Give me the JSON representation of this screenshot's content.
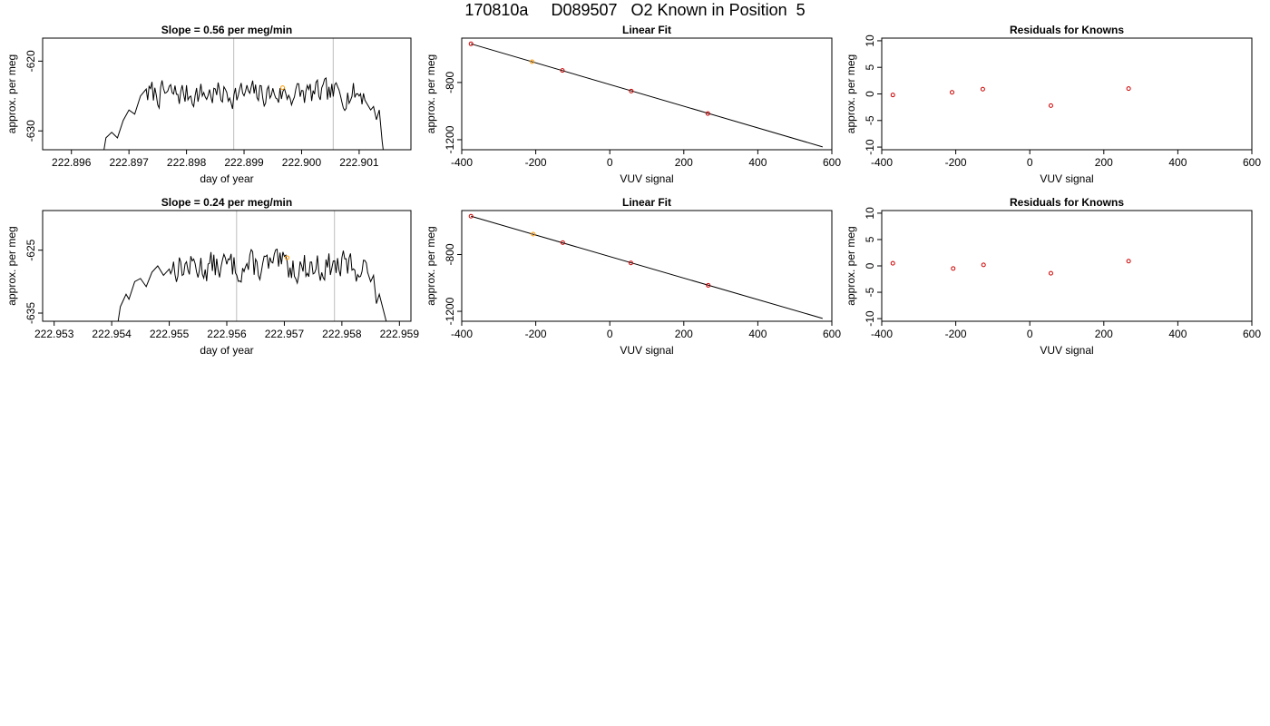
{
  "page": {
    "title": "170810a     D089507   O2 Known in Position  5"
  },
  "chart_data": [
    {
      "type": "line",
      "panel": "trace",
      "title": "Slope =  0.56  per meg/min",
      "xlabel": "day of year",
      "ylabel": "approx. per meg",
      "xlim": [
        222.8955,
        222.9019
      ],
      "ylim": [
        -632.7,
        -616.7
      ],
      "xticks": [
        "222.896",
        "222.897",
        "222.898",
        "222.899",
        "222.900",
        "222.901"
      ],
      "yticks": [
        "-620",
        "-630"
      ],
      "vlines": [
        222.89882,
        222.90055
      ],
      "trace_range": [
        222.89655,
        222.90143
      ],
      "trace_baseline": -624.7,
      "trace_amplitude": 1.7,
      "trace_seed": 7,
      "edge": {
        "start": [
          [
            222.89655,
            -633.5
          ],
          [
            222.8966,
            -631.0
          ],
          [
            222.8967,
            -630.2
          ],
          [
            222.8968,
            -631.0
          ],
          [
            222.8969,
            -628.5
          ],
          [
            222.897,
            -627.0
          ],
          [
            222.8971,
            -627.6
          ],
          [
            222.8972,
            -625.0
          ],
          [
            222.8973,
            -624.0
          ]
        ],
        "end": [
          [
            222.9011,
            -625.6
          ],
          [
            222.9012,
            -627.0
          ],
          [
            222.90125,
            -626.5
          ],
          [
            222.9013,
            -628.4
          ],
          [
            222.90135,
            -627.0
          ],
          [
            222.9014,
            -631.5
          ],
          [
            222.90143,
            -633.5
          ]
        ]
      },
      "points": [
        {
          "x": 222.89967,
          "y": -623.8,
          "color": "#ff9900"
        }
      ]
    },
    {
      "type": "scatter",
      "panel": "fit",
      "title": "Linear Fit",
      "xlabel": "VUV signal",
      "ylabel": "approx. per meg",
      "xlim": [
        -400,
        600
      ],
      "ylim": [
        -1270,
        -490
      ],
      "xticks": [
        -400,
        -200,
        0,
        200,
        400,
        600
      ],
      "yticks": [
        -800,
        -1200
      ],
      "fit_line": [
        [
          -375,
          -530
        ],
        [
          575,
          -1250
        ]
      ],
      "points": [
        {
          "x": -375,
          "y": -530,
          "color": "#cc0000"
        },
        {
          "x": -210,
          "y": -655,
          "color": "#ff9900"
        },
        {
          "x": -128,
          "y": -716,
          "color": "#cc0000"
        },
        {
          "x": 58,
          "y": -860,
          "color": "#cc0000"
        },
        {
          "x": 265,
          "y": -1017,
          "color": "#cc0000"
        }
      ]
    },
    {
      "type": "scatter",
      "panel": "residuals",
      "title": "Residuals for Knowns",
      "xlabel": "VUV signal",
      "ylabel": "approx. per meg",
      "xlim": [
        -400,
        600
      ],
      "ylim": [
        -10.5,
        10.5
      ],
      "xticks": [
        -400,
        -200,
        0,
        200,
        400,
        600
      ],
      "yticks": [
        10,
        5,
        0,
        -5,
        -10
      ],
      "points": [
        {
          "x": -370,
          "y": -0.2,
          "color": "#cc0000"
        },
        {
          "x": -210,
          "y": 0.3,
          "color": "#cc0000"
        },
        {
          "x": -127,
          "y": 0.9,
          "color": "#cc0000"
        },
        {
          "x": 57,
          "y": -2.2,
          "color": "#cc0000"
        },
        {
          "x": 267,
          "y": 1.0,
          "color": "#cc0000"
        }
      ]
    },
    {
      "type": "line",
      "panel": "trace",
      "title": "Slope =  0.24  per meg/min",
      "xlabel": "day of year",
      "ylabel": "approx. per meg",
      "xlim": [
        222.9528,
        222.9592
      ],
      "ylim": [
        -636.3,
        -618.7
      ],
      "xticks": [
        "222.953",
        "222.954",
        "222.955",
        "222.956",
        "222.957",
        "222.958",
        "222.959"
      ],
      "yticks": [
        "-625",
        "-635"
      ],
      "vlines": [
        222.95617,
        222.95787
      ],
      "trace_range": [
        222.9541,
        222.95879
      ],
      "trace_baseline": -627.6,
      "trace_amplitude": 2.2,
      "trace_seed": 13,
      "edge": {
        "start": [
          [
            222.9541,
            -637.0
          ],
          [
            222.95415,
            -634.0
          ],
          [
            222.9542,
            -633.0
          ],
          [
            222.95425,
            -632.0
          ],
          [
            222.9543,
            -632.8
          ],
          [
            222.9544,
            -630.0
          ],
          [
            222.9545,
            -629.5
          ],
          [
            222.9546,
            -630.8
          ],
          [
            222.9547,
            -628.5
          ],
          [
            222.9548,
            -627.5
          ],
          [
            222.9549,
            -629.0
          ],
          [
            222.955,
            -628.0
          ]
        ],
        "end": [
          [
            222.95845,
            -628.6
          ],
          [
            222.9585,
            -630.0
          ],
          [
            222.95855,
            -629.0
          ],
          [
            222.9586,
            -633.5
          ],
          [
            222.95865,
            -632.0
          ],
          [
            222.95879,
            -637.0
          ]
        ]
      },
      "points": [
        {
          "x": 222.95705,
          "y": -626.2,
          "color": "#ff9900"
        }
      ]
    },
    {
      "type": "scatter",
      "panel": "fit",
      "title": "Linear Fit",
      "xlabel": "VUV signal",
      "ylabel": "approx. per meg",
      "xlim": [
        -400,
        600
      ],
      "ylim": [
        -1270,
        -490
      ],
      "xticks": [
        -400,
        -200,
        0,
        200,
        400,
        600
      ],
      "yticks": [
        -800,
        -1200
      ],
      "fit_line": [
        [
          -375,
          -530
        ],
        [
          575,
          -1250
        ]
      ],
      "points": [
        {
          "x": -375,
          "y": -530,
          "color": "#cc0000"
        },
        {
          "x": -207,
          "y": -656,
          "color": "#ff9900"
        },
        {
          "x": -127,
          "y": -716,
          "color": "#cc0000"
        },
        {
          "x": 57,
          "y": -859,
          "color": "#cc0000"
        },
        {
          "x": 266,
          "y": -1017,
          "color": "#cc0000"
        }
      ]
    },
    {
      "type": "scatter",
      "panel": "residuals",
      "title": "Residuals for Knowns",
      "xlabel": "VUV signal",
      "ylabel": "approx. per meg",
      "xlim": [
        -400,
        600
      ],
      "ylim": [
        -10.5,
        10.5
      ],
      "xticks": [
        -400,
        -200,
        0,
        200,
        400,
        600
      ],
      "yticks": [
        10,
        5,
        0,
        -5,
        -10
      ],
      "points": [
        {
          "x": -370,
          "y": 0.5,
          "color": "#cc0000"
        },
        {
          "x": -207,
          "y": -0.5,
          "color": "#cc0000"
        },
        {
          "x": -125,
          "y": 0.2,
          "color": "#cc0000"
        },
        {
          "x": 57,
          "y": -1.4,
          "color": "#cc0000"
        },
        {
          "x": 267,
          "y": 0.9,
          "color": "#cc0000"
        }
      ]
    }
  ]
}
